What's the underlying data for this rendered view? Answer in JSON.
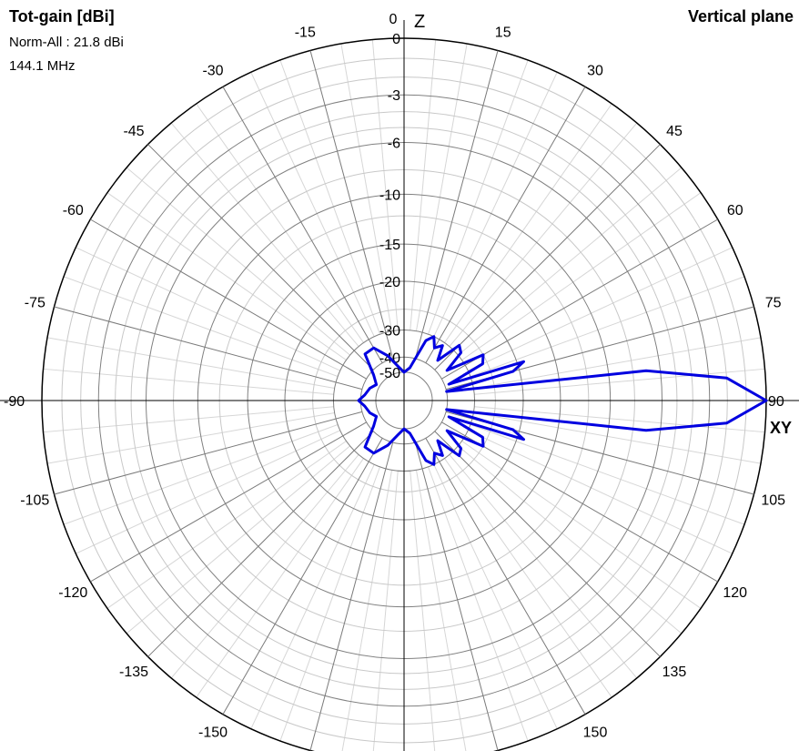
{
  "header": {
    "title": "Tot-gain [dBi]",
    "norm": "Norm-All : 21.8 dBi",
    "freq": "144.1 MHz",
    "plane": "Vertical plane"
  },
  "chart_data": {
    "type": "polar",
    "title": "Tot-gain [dBi]",
    "plane": "Vertical plane",
    "axis_labels": {
      "top": "Z",
      "right": "XY"
    },
    "angle_ticks_deg": [
      -150,
      -135,
      -120,
      -105,
      -90,
      -75,
      -60,
      -45,
      -30,
      -15,
      0,
      15,
      30,
      45,
      60,
      75,
      90,
      105,
      120,
      135,
      150
    ],
    "angle_tick_labels": [
      "-150",
      "-135",
      "-120",
      "-105",
      "-90",
      "-75",
      "-60",
      "-45",
      "-30",
      "-15",
      "0",
      "15",
      "30",
      "45",
      "60",
      "75",
      "90",
      "105",
      "120",
      "135",
      "150"
    ],
    "radial_ticks_db": [
      0,
      -3,
      -6,
      -10,
      -15,
      -20,
      -30,
      -40,
      -50
    ],
    "radial_tick_labels": [
      "0",
      "-3",
      "-6",
      "-10",
      "-15",
      "-20",
      "-30",
      "-40",
      "-50"
    ],
    "radial_unit": "dB relative to max (21.8 dBi)",
    "grid": true,
    "series": [
      {
        "color": "#0000e0",
        "points": [
          {
            "angle": 0,
            "db": -50
          },
          {
            "angle": 10,
            "db": -46
          },
          {
            "angle": 20,
            "db": -32
          },
          {
            "angle": 25,
            "db": -30
          },
          {
            "angle": 30,
            "db": -33
          },
          {
            "angle": 35,
            "db": -31
          },
          {
            "angle": 40,
            "db": -36
          },
          {
            "angle": 45,
            "db": -28
          },
          {
            "angle": 50,
            "db": -29
          },
          {
            "angle": 55,
            "db": -36
          },
          {
            "angle": 60,
            "db": -25
          },
          {
            "angle": 65,
            "db": -26
          },
          {
            "angle": 70,
            "db": -38
          },
          {
            "angle": 72,
            "db": -19
          },
          {
            "angle": 75,
            "db": -21
          },
          {
            "angle": 78,
            "db": -40
          },
          {
            "angle": 83,
            "db": -7
          },
          {
            "angle": 86,
            "db": -2
          },
          {
            "angle": 90,
            "db": 0
          },
          {
            "angle": 94,
            "db": -2
          },
          {
            "angle": 97,
            "db": -7
          },
          {
            "angle": 102,
            "db": -40
          },
          {
            "angle": 105,
            "db": -21
          },
          {
            "angle": 108,
            "db": -19
          },
          {
            "angle": 110,
            "db": -38
          },
          {
            "angle": 115,
            "db": -26
          },
          {
            "angle": 120,
            "db": -25
          },
          {
            "angle": 125,
            "db": -36
          },
          {
            "angle": 130,
            "db": -29
          },
          {
            "angle": 135,
            "db": -28
          },
          {
            "angle": 140,
            "db": -36
          },
          {
            "angle": 145,
            "db": -31
          },
          {
            "angle": 150,
            "db": -33
          },
          {
            "angle": 155,
            "db": -30
          },
          {
            "angle": 160,
            "db": -32
          },
          {
            "angle": 170,
            "db": -46
          },
          {
            "angle": 180,
            "db": -50
          },
          {
            "angle": 190,
            "db": -45
          },
          {
            "angle": 200,
            "db": -38
          },
          {
            "angle": 210,
            "db": -33
          },
          {
            "angle": 220,
            "db": -33
          },
          {
            "angle": 230,
            "db": -42
          },
          {
            "angle": 240,
            "db": -47
          },
          {
            "angle": 250,
            "db": -44
          },
          {
            "angle": 262,
            "db": -42
          },
          {
            "angle": 270,
            "db": -39
          },
          {
            "angle": 278,
            "db": -42
          },
          {
            "angle": 290,
            "db": -44
          },
          {
            "angle": 300,
            "db": -47
          },
          {
            "angle": 310,
            "db": -42
          },
          {
            "angle": 320,
            "db": -33
          },
          {
            "angle": 330,
            "db": -33
          },
          {
            "angle": 340,
            "db": -38
          },
          {
            "angle": 350,
            "db": -45
          },
          {
            "angle": 360,
            "db": -50
          }
        ]
      }
    ]
  }
}
